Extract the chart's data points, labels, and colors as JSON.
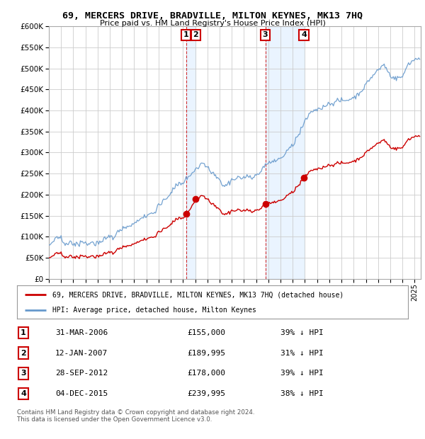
{
  "title": "69, MERCERS DRIVE, BRADVILLE, MILTON KEYNES, MK13 7HQ",
  "subtitle": "Price paid vs. HM Land Registry's House Price Index (HPI)",
  "ylim": [
    0,
    600000
  ],
  "yticks": [
    0,
    50000,
    100000,
    150000,
    200000,
    250000,
    300000,
    350000,
    400000,
    450000,
    500000,
    550000,
    600000
  ],
  "xlim": [
    1995,
    2025.5
  ],
  "sale_dates": [
    2006.25,
    2007.04,
    2012.75,
    2015.92
  ],
  "sale_prices": [
    155000,
    189995,
    178000,
    239995
  ],
  "sale_labels": [
    "1",
    "2",
    "3",
    "4"
  ],
  "legend_house": "69, MERCERS DRIVE, BRADVILLE, MILTON KEYNES, MK13 7HQ (detached house)",
  "legend_hpi": "HPI: Average price, detached house, Milton Keynes",
  "table_rows": [
    [
      "1",
      "31-MAR-2006",
      "£155,000",
      "39% ↓ HPI"
    ],
    [
      "2",
      "12-JAN-2007",
      "£189,995",
      "31% ↓ HPI"
    ],
    [
      "3",
      "28-SEP-2012",
      "£178,000",
      "39% ↓ HPI"
    ],
    [
      "4",
      "04-DEC-2015",
      "£239,995",
      "38% ↓ HPI"
    ]
  ],
  "footnote": "Contains HM Land Registry data © Crown copyright and database right 2024.\nThis data is licensed under the Open Government Licence v3.0.",
  "house_color": "#cc0000",
  "hpi_color": "#6699cc",
  "background_color": "#ffffff",
  "grid_color": "#cccccc",
  "shade_color": "#ddeeff"
}
